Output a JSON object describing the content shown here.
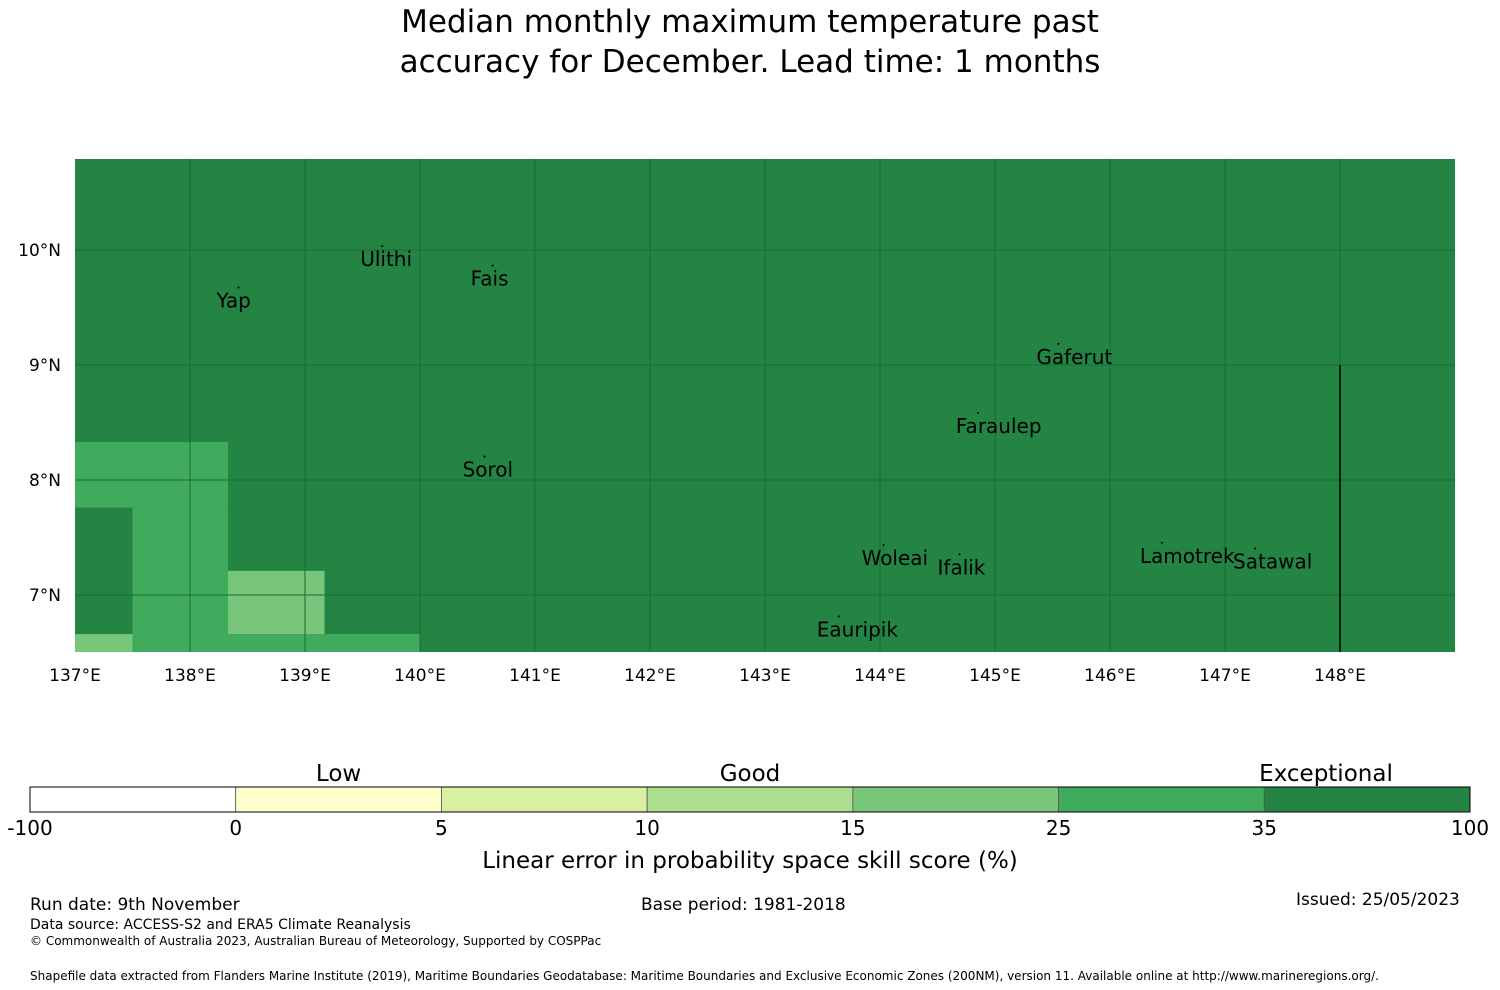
{
  "title": {
    "line1": "Median monthly maximum temperature past",
    "line2": "accuracy for December. Lead time: 1 months"
  },
  "map": {
    "lon_range": [
      137,
      149
    ],
    "lat_range": [
      6.5,
      10.8
    ],
    "x_ticks": [
      "137°E",
      "138°E",
      "139°E",
      "140°E",
      "141°E",
      "142°E",
      "143°E",
      "144°E",
      "145°E",
      "146°E",
      "147°E",
      "148°E"
    ],
    "y_ticks": [
      "10°N",
      "9°N",
      "8°N",
      "7°N"
    ],
    "background_color": "#238443",
    "cells": [
      {
        "lon0": 137.0,
        "lon1": 138.33,
        "lat0": 7.76,
        "lat1": 8.33,
        "color": "#41ab5d"
      },
      {
        "lon0": 137.5,
        "lon1": 138.33,
        "lat0": 6.5,
        "lat1": 7.76,
        "color": "#41ab5d"
      },
      {
        "lon0": 137.0,
        "lon1": 137.5,
        "lat0": 6.5,
        "lat1": 6.66,
        "color": "#78c679"
      },
      {
        "lon0": 138.33,
        "lon1": 139.17,
        "lat0": 6.66,
        "lat1": 7.21,
        "color": "#78c679"
      },
      {
        "lon0": 138.33,
        "lon1": 140.0,
        "lat0": 6.5,
        "lat1": 6.66,
        "color": "#41ab5d"
      }
    ],
    "islands": [
      {
        "name": "Ulithi",
        "lon": 139.48,
        "lat": 9.86
      },
      {
        "name": "Fais",
        "lon": 140.44,
        "lat": 9.69
      },
      {
        "name": "Yap",
        "lon": 138.23,
        "lat": 9.5
      },
      {
        "name": "Gaferut",
        "lon": 145.36,
        "lat": 9.01
      },
      {
        "name": "Faraulep",
        "lon": 144.66,
        "lat": 8.41
      },
      {
        "name": "Sorol",
        "lon": 140.37,
        "lat": 8.03
      },
      {
        "name": "Woleai",
        "lon": 143.84,
        "lat": 7.26
      },
      {
        "name": "Ifalik",
        "lon": 144.5,
        "lat": 7.18
      },
      {
        "name": "Lamotrek",
        "lon": 146.26,
        "lat": 7.28
      },
      {
        "name": "Satawal",
        "lon": 147.07,
        "lat": 7.23
      },
      {
        "name": "Eauripik",
        "lon": 143.45,
        "lat": 6.64
      }
    ],
    "boundary_lon": 148.0,
    "boundary_lat": [
      6.5,
      9.0
    ]
  },
  "legend": {
    "categories": [
      "Low",
      "Good",
      "Exceptional"
    ],
    "tick_labels": [
      "-100",
      "0",
      "5",
      "10",
      "15",
      "25",
      "35",
      "100"
    ],
    "colors": [
      "#ffffff",
      "#ffffcc",
      "#d9f0a3",
      "#addd8e",
      "#78c679",
      "#41ab5d",
      "#238443"
    ],
    "label": "Linear error in probability space skill score (%)"
  },
  "footer": {
    "run_date": "Run date: 9th November",
    "base_period": "Base period: 1981-2018",
    "issued": "Issued: 25/05/2023",
    "data_source": "Data source: ACCESS-S2 and ERA5 Climate Reanalysis",
    "copyright": "© Commonwealth of Australia 2023, Australian Bureau of Meteorology, Supported by COSPPac",
    "shapefile": "Shapefile data extracted from Flanders Marine Institute (2019), Maritime Boundaries Geodatabase: Maritime Boundaries and Exclusive Economic Zones (200NM), version 11. Available online at http://www.marineregions.org/."
  }
}
